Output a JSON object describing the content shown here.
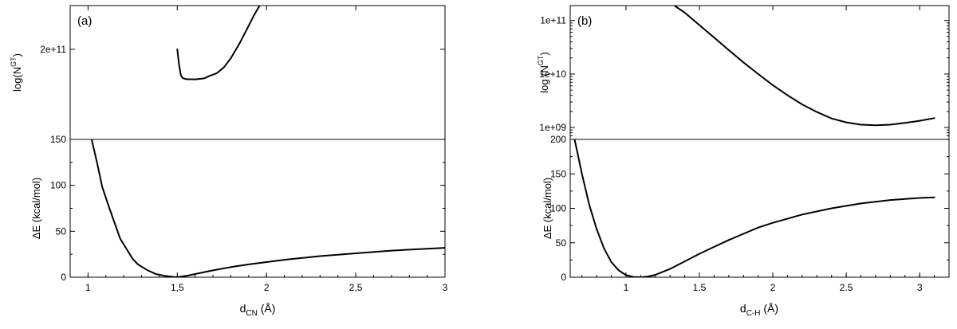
{
  "chart_data": [
    {
      "panel": "(a)",
      "type": "line",
      "xlabel": {
        "main": "d",
        "sub": "CN",
        "unit": " (Å)"
      },
      "xlim": [
        0.9,
        3.0
      ],
      "xticks": [
        "1",
        "1,5",
        "2",
        "2,5",
        "3"
      ],
      "xtick_values": [
        1.0,
        1.5,
        2.0,
        2.5,
        3.0
      ],
      "top": {
        "ylabel": {
          "main": "log(N",
          "sup": "GT",
          "end": ")"
        },
        "yscale": "log",
        "ylim": [
          150000000000.0,
          230000000000.0
        ],
        "yticks": [
          "2e+11"
        ],
        "ytick_values": [
          200000000000.0
        ],
        "x": [
          1.5,
          1.51,
          1.52,
          1.53,
          1.55,
          1.6,
          1.65,
          1.68,
          1.72,
          1.76,
          1.8,
          1.85,
          1.9,
          1.93,
          1.97
        ],
        "y": [
          200000000000.0,
          190500000000.0,
          184000000000.0,
          182500000000.0,
          181800000000.0,
          181700000000.0,
          182300000000.0,
          183700000000.0,
          185200000000.0,
          188700000000.0,
          194400000000.0,
          204000000000.0,
          215600000000.0,
          223000000000.0,
          232000000000.0
        ]
      },
      "bottom": {
        "ylabel": {
          "main": "ΔE (kcal/mol)"
        },
        "ylim": [
          0,
          150
        ],
        "yticks": [
          "0",
          "50",
          "100",
          "150"
        ],
        "ytick_values": [
          0,
          50,
          100,
          150
        ],
        "x": [
          1.02,
          1.05,
          1.08,
          1.12,
          1.18,
          1.25,
          1.28,
          1.33,
          1.38,
          1.43,
          1.47,
          1.5,
          1.55,
          1.6,
          1.7,
          1.8,
          1.9,
          2.0,
          2.1,
          2.2,
          2.3,
          2.5,
          2.7,
          2.9,
          3.0
        ],
        "y": [
          150,
          125,
          98,
          75,
          42,
          20,
          14,
          8,
          3.5,
          1.5,
          0.5,
          0,
          1.5,
          3.5,
          7.5,
          11,
          14,
          16.5,
          19,
          21,
          23,
          26,
          29,
          31,
          32
        ]
      }
    },
    {
      "panel": "(b)",
      "type": "line",
      "xlabel": {
        "main": "d",
        "sub": "C-H",
        "unit": " (Å)"
      },
      "xlim": [
        0.62,
        3.2
      ],
      "xticks": [
        "1",
        "1.5",
        "2",
        "2.5",
        "3"
      ],
      "xtick_values": [
        1.0,
        1.5,
        2.0,
        2.5,
        3.0
      ],
      "top": {
        "ylabel": {
          "main": "log (N",
          "sup": "GT",
          "end": ")"
        },
        "yscale": "log",
        "ylim": [
          600000000.0,
          190000000000.0
        ],
        "yticks": [
          "1e+09",
          "1e+10",
          "1e+11"
        ],
        "ytick_values": [
          1000000000.0,
          10000000000.0,
          100000000000.0
        ],
        "x": [
          1.33,
          1.4,
          1.5,
          1.6,
          1.7,
          1.8,
          1.9,
          2.0,
          2.1,
          2.2,
          2.3,
          2.4,
          2.5,
          2.6,
          2.7,
          2.8,
          2.9,
          3.0,
          3.1
        ],
        "y": [
          190000000000.0,
          140000000000.0,
          82000000000.0,
          48000000000.0,
          28000000000.0,
          16500000000.0,
          10000000000.0,
          6200000000.0,
          4000000000.0,
          2700000000.0,
          1950000000.0,
          1480000000.0,
          1250000000.0,
          1130000000.0,
          1100000000.0,
          1130000000.0,
          1220000000.0,
          1340000000.0,
          1500000000.0
        ]
      },
      "bottom": {
        "ylabel": {
          "main": "ΔE (kcal/mol)"
        },
        "ylim": [
          0,
          200
        ],
        "yticks": [
          "0",
          "50",
          "100",
          "150",
          "200"
        ],
        "ytick_values": [
          0,
          50,
          100,
          150,
          200
        ],
        "x": [
          0.65,
          0.7,
          0.75,
          0.8,
          0.85,
          0.9,
          0.95,
          1.0,
          1.05,
          1.1,
          1.15,
          1.2,
          1.3,
          1.4,
          1.5,
          1.6,
          1.7,
          1.8,
          1.9,
          2.0,
          2.2,
          2.4,
          2.6,
          2.8,
          3.0,
          3.1
        ],
        "y": [
          200,
          150,
          105,
          70,
          42,
          22,
          10,
          3,
          0.5,
          0,
          1,
          3.5,
          12,
          23,
          34,
          44,
          54,
          63,
          72,
          79,
          91,
          100,
          107,
          112,
          115,
          116
        ]
      }
    }
  ]
}
